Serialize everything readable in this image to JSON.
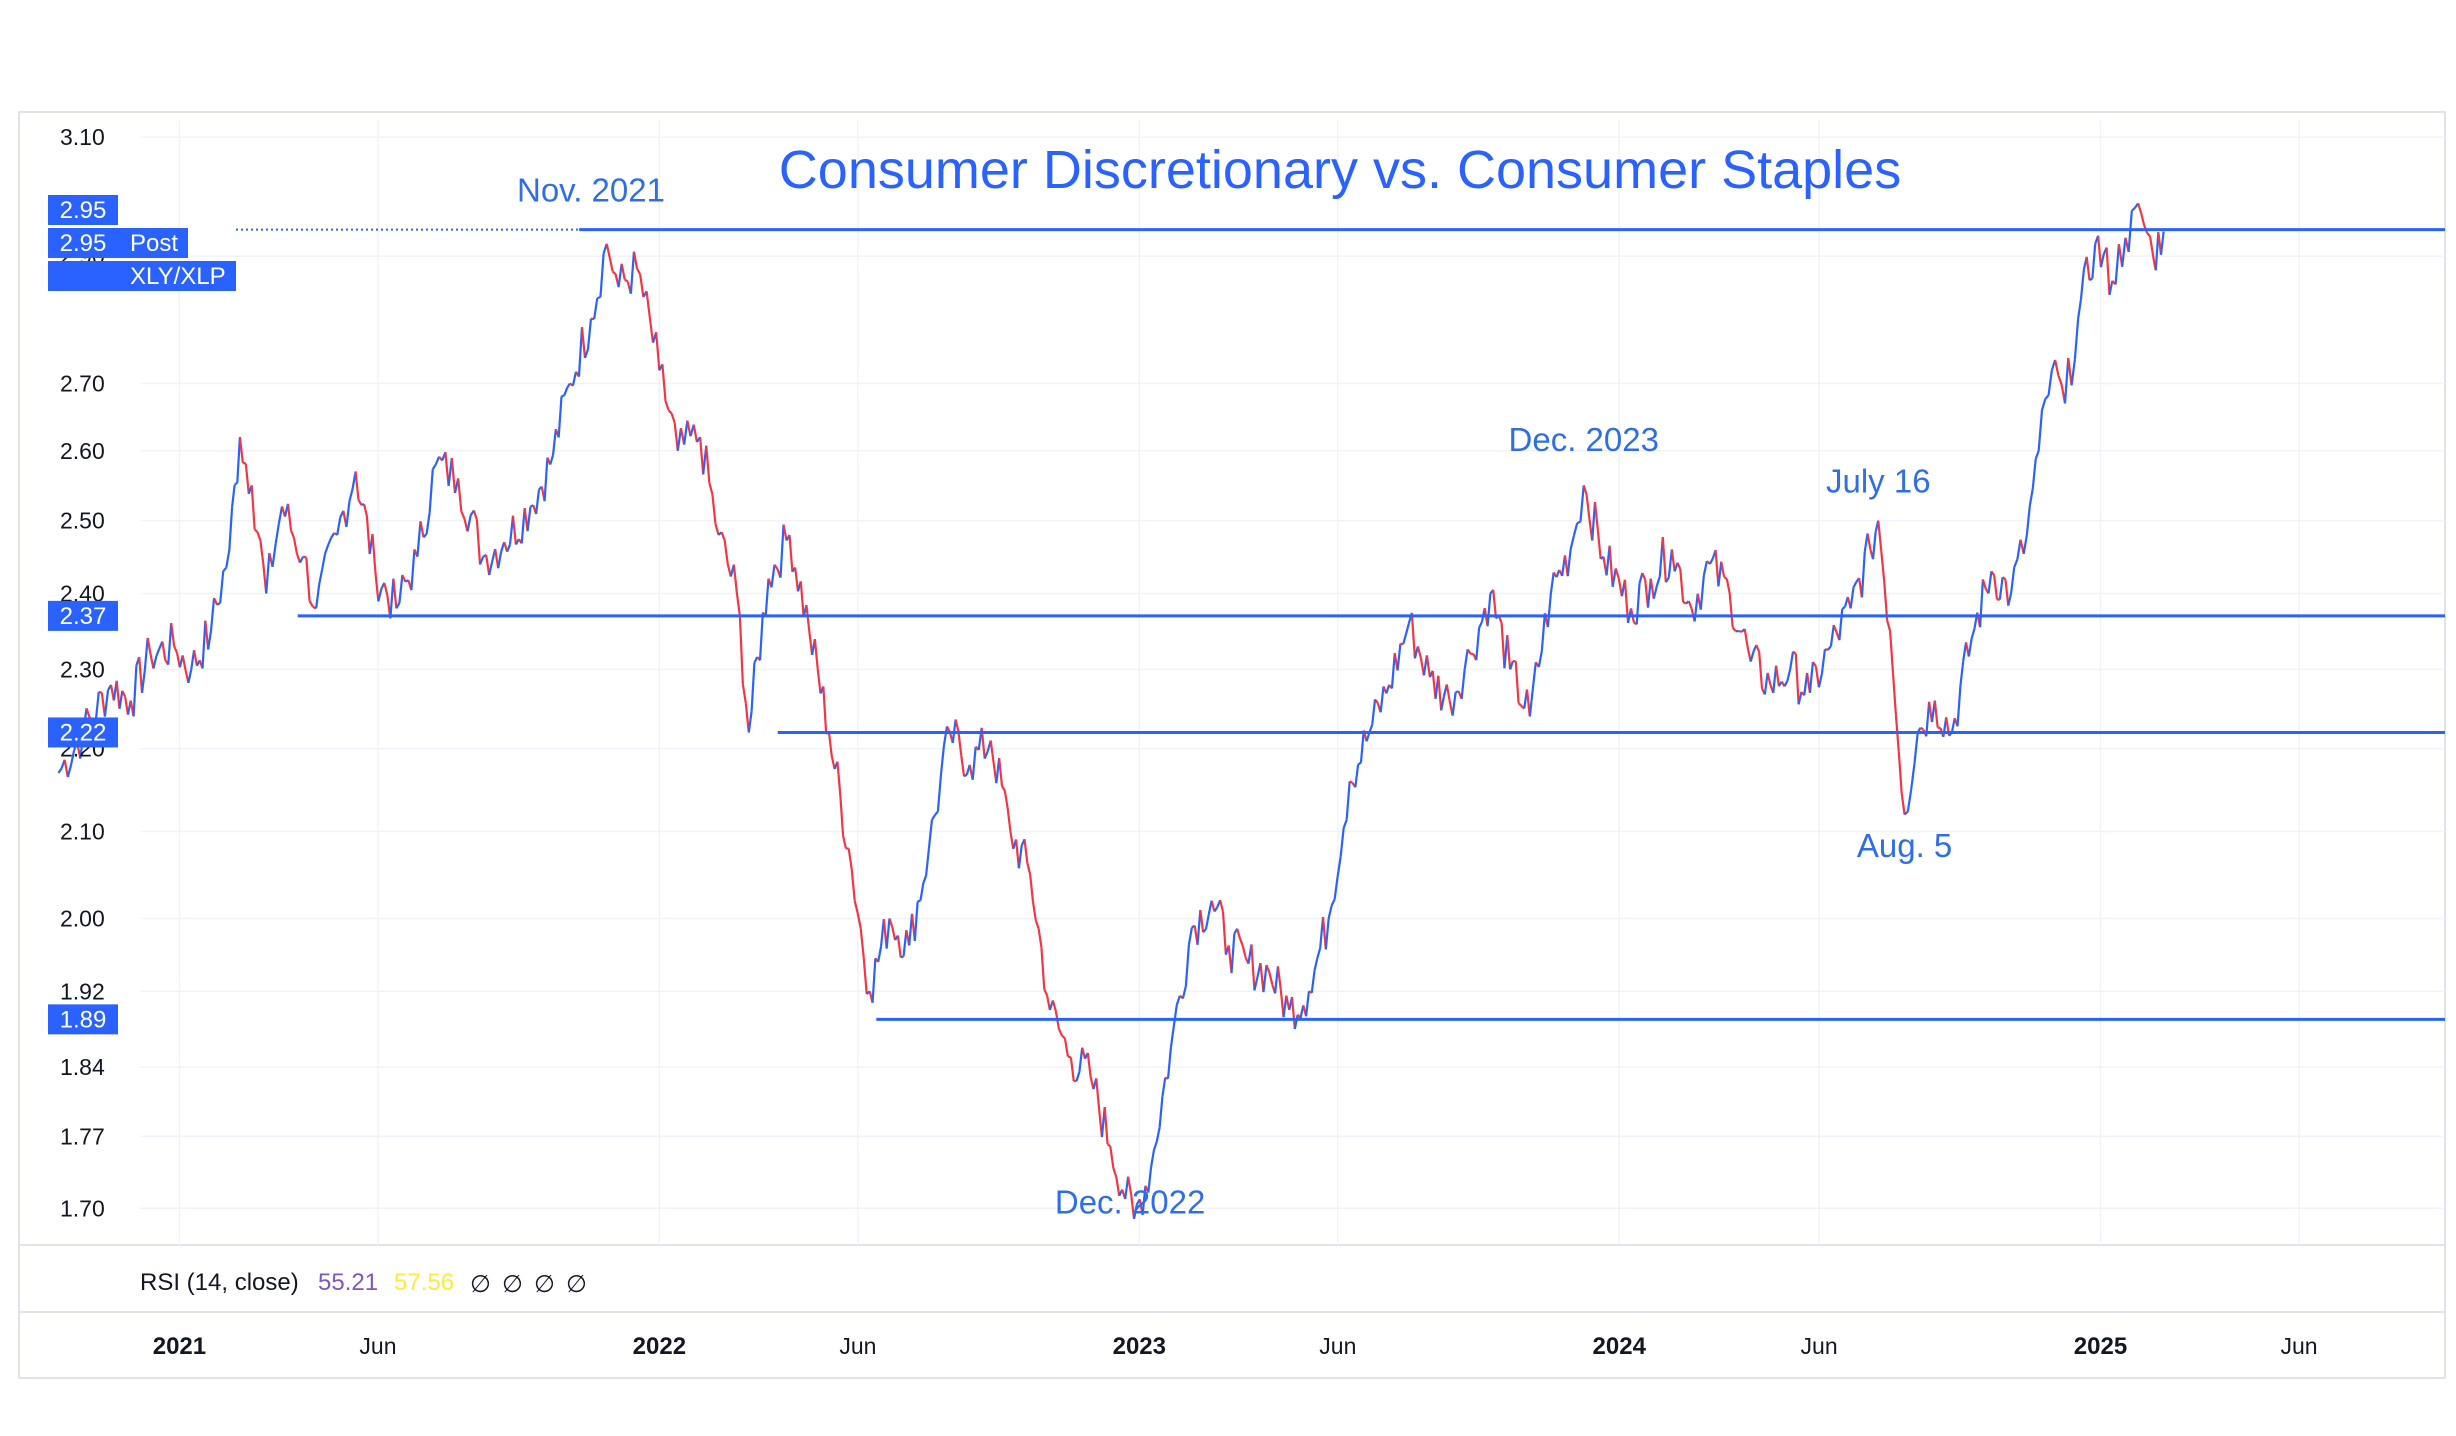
{
  "chart_data": {
    "type": "line",
    "title": "Consumer Discretionary vs. Consumer Staples",
    "symbol": "XLY/XLP",
    "session_label": "Post",
    "x_tick_labels": [
      {
        "label": "2021",
        "date": "2021-01-01",
        "bold": true
      },
      {
        "label": "Jun",
        "date": "2021-06-01",
        "bold": false
      },
      {
        "label": "2022",
        "date": "2022-01-01",
        "bold": true
      },
      {
        "label": "Jun",
        "date": "2022-06-01",
        "bold": false
      },
      {
        "label": "2023",
        "date": "2023-01-01",
        "bold": true
      },
      {
        "label": "Jun",
        "date": "2023-06-01",
        "bold": false
      },
      {
        "label": "2024",
        "date": "2024-01-01",
        "bold": true
      },
      {
        "label": "Jun",
        "date": "2024-06-01",
        "bold": false
      },
      {
        "label": "2025",
        "date": "2025-01-01",
        "bold": true
      },
      {
        "label": "Jun",
        "date": "2025-06-01",
        "bold": false
      }
    ],
    "y_tick_labels": [
      "3.10",
      "2.90",
      "2.70",
      "2.60",
      "2.50",
      "2.40",
      "2.30",
      "2.20",
      "2.10",
      "2.00",
      "1.92",
      "1.84",
      "1.77",
      "1.70"
    ],
    "y_scale": "log",
    "ylim": [
      1.67,
      3.13
    ],
    "xlim": [
      "2020-09-01",
      "2025-09-20"
    ],
    "price_badges": [
      {
        "label": "2.95",
        "value": 2.955
      },
      {
        "label": "2.95",
        "value": 2.955,
        "suffix": "Post"
      },
      {
        "label": "XLY/XLP",
        "value": 2.9
      }
    ],
    "current_value": 2.95,
    "horizontal_lines": [
      {
        "value": 2.95,
        "badge": "2.95",
        "start": "2021-11-01",
        "style": "dotted-then-solid"
      },
      {
        "value": 2.37,
        "badge": "2.37",
        "start": "2021-04-01"
      },
      {
        "value": 2.22,
        "badge": "2.22",
        "start": "2022-04-01"
      },
      {
        "value": 1.89,
        "badge": "1.89",
        "start": "2022-06-15"
      }
    ],
    "annotations": [
      {
        "text": "Nov. 2021",
        "date": "2021-11-10",
        "value": 2.99
      },
      {
        "text": "Dec. 2023",
        "date": "2023-12-05",
        "value": 2.6
      },
      {
        "text": "July 16",
        "date": "2024-07-16",
        "value": 2.54
      },
      {
        "text": "Aug. 5",
        "date": "2024-08-05",
        "value": 2.07
      },
      {
        "text": "Dec. 2022",
        "date": "2022-12-25",
        "value": 1.695
      }
    ],
    "series": [
      {
        "colors": [
          "#2962ff",
          "#f23645"
        ],
        "values": [
          [
            "2020-10-01",
            2.17
          ],
          [
            "2020-10-20",
            2.22
          ],
          [
            "2020-11-10",
            2.28
          ],
          [
            "2020-11-25",
            2.26
          ],
          [
            "2020-12-10",
            2.32
          ],
          [
            "2020-12-28",
            2.33
          ],
          [
            "2021-01-10",
            2.3
          ],
          [
            "2021-01-25",
            2.35
          ],
          [
            "2021-02-08",
            2.46
          ],
          [
            "2021-02-16",
            2.62
          ],
          [
            "2021-02-25",
            2.55
          ],
          [
            "2021-03-08",
            2.4
          ],
          [
            "2021-03-20",
            2.52
          ],
          [
            "2021-04-05",
            2.45
          ],
          [
            "2021-04-15",
            2.38
          ],
          [
            "2021-05-01",
            2.48
          ],
          [
            "2021-05-15",
            2.57
          ],
          [
            "2021-05-30",
            2.43
          ],
          [
            "2021-06-15",
            2.38
          ],
          [
            "2021-07-01",
            2.45
          ],
          [
            "2021-07-15",
            2.58
          ],
          [
            "2021-08-01",
            2.56
          ],
          [
            "2021-08-20",
            2.45
          ],
          [
            "2021-09-05",
            2.47
          ],
          [
            "2021-09-25",
            2.52
          ],
          [
            "2021-10-10",
            2.58
          ],
          [
            "2021-10-25",
            2.7
          ],
          [
            "2021-11-10",
            2.8
          ],
          [
            "2021-11-22",
            2.92
          ],
          [
            "2021-12-01",
            2.85
          ],
          [
            "2021-12-15",
            2.88
          ],
          [
            "2022-01-01",
            2.72
          ],
          [
            "2022-01-15",
            2.6
          ],
          [
            "2022-02-01",
            2.62
          ],
          [
            "2022-02-15",
            2.48
          ],
          [
            "2022-03-01",
            2.4
          ],
          [
            "2022-03-10",
            2.22
          ],
          [
            "2022-03-25",
            2.42
          ],
          [
            "2022-04-10",
            2.48
          ],
          [
            "2022-04-25",
            2.35
          ],
          [
            "2022-05-10",
            2.22
          ],
          [
            "2022-05-25",
            2.08
          ],
          [
            "2022-06-10",
            1.92
          ],
          [
            "2022-06-25",
            2.0
          ],
          [
            "2022-07-10",
            1.97
          ],
          [
            "2022-07-25",
            2.08
          ],
          [
            "2022-08-10",
            2.22
          ],
          [
            "2022-08-25",
            2.18
          ],
          [
            "2022-09-10",
            2.21
          ],
          [
            "2022-09-25",
            2.1
          ],
          [
            "2022-10-10",
            2.05
          ],
          [
            "2022-10-25",
            1.9
          ],
          [
            "2022-11-10",
            1.85
          ],
          [
            "2022-11-25",
            1.83
          ],
          [
            "2022-12-10",
            1.76
          ],
          [
            "2022-12-28",
            1.69
          ],
          [
            "2023-01-10",
            1.74
          ],
          [
            "2023-01-25",
            1.86
          ],
          [
            "2023-02-10",
            1.99
          ],
          [
            "2023-02-25",
            2.02
          ],
          [
            "2023-03-10",
            1.97
          ],
          [
            "2023-03-25",
            1.95
          ],
          [
            "2023-04-10",
            1.94
          ],
          [
            "2023-04-25",
            1.9
          ],
          [
            "2023-05-10",
            1.92
          ],
          [
            "2023-05-25",
            2.0
          ],
          [
            "2023-06-10",
            2.16
          ],
          [
            "2023-06-25",
            2.22
          ],
          [
            "2023-07-10",
            2.28
          ],
          [
            "2023-07-25",
            2.36
          ],
          [
            "2023-08-10",
            2.29
          ],
          [
            "2023-08-25",
            2.26
          ],
          [
            "2023-09-10",
            2.32
          ],
          [
            "2023-09-25",
            2.4
          ],
          [
            "2023-10-10",
            2.3
          ],
          [
            "2023-10-25",
            2.24
          ],
          [
            "2023-11-10",
            2.4
          ],
          [
            "2023-11-25",
            2.46
          ],
          [
            "2023-12-05",
            2.55
          ],
          [
            "2023-12-20",
            2.45
          ],
          [
            "2024-01-10",
            2.38
          ],
          [
            "2024-01-25",
            2.42
          ],
          [
            "2024-02-10",
            2.46
          ],
          [
            "2024-02-25",
            2.38
          ],
          [
            "2024-03-10",
            2.44
          ],
          [
            "2024-03-25",
            2.4
          ],
          [
            "2024-04-10",
            2.31
          ],
          [
            "2024-04-25",
            2.28
          ],
          [
            "2024-05-10",
            2.3
          ],
          [
            "2024-05-25",
            2.27
          ],
          [
            "2024-06-10",
            2.33
          ],
          [
            "2024-06-25",
            2.38
          ],
          [
            "2024-07-10",
            2.46
          ],
          [
            "2024-07-16",
            2.5
          ],
          [
            "2024-07-25",
            2.35
          ],
          [
            "2024-08-05",
            2.12
          ],
          [
            "2024-08-15",
            2.22
          ],
          [
            "2024-08-28",
            2.26
          ],
          [
            "2024-09-10",
            2.22
          ],
          [
            "2024-09-25",
            2.34
          ],
          [
            "2024-10-10",
            2.43
          ],
          [
            "2024-10-25",
            2.4
          ],
          [
            "2024-11-06",
            2.48
          ],
          [
            "2024-11-15",
            2.6
          ],
          [
            "2024-11-25",
            2.72
          ],
          [
            "2024-12-05",
            2.67
          ],
          [
            "2024-12-15",
            2.8
          ],
          [
            "2024-12-28",
            2.92
          ],
          [
            "2025-01-10",
            2.86
          ],
          [
            "2025-01-20",
            2.93
          ],
          [
            "2025-02-01",
            2.97
          ],
          [
            "2025-02-10",
            2.9
          ],
          [
            "2025-02-18",
            2.94
          ]
        ]
      }
    ],
    "rsi": {
      "label": "RSI (14, close)",
      "value1": "55.21",
      "value2": "57.56",
      "value1_color": "#7e57c2",
      "value2_color": "#ffeb3b",
      "empty_symbols": [
        "∅",
        "∅",
        "∅",
        "∅"
      ]
    },
    "colors": {
      "accent": "#2962ff",
      "annotation": "#2e6fe8",
      "up": "#2962ff",
      "down": "#f23645",
      "grid": "#f0f3fa",
      "border": "#e0e3eb",
      "text": "#131722"
    }
  }
}
